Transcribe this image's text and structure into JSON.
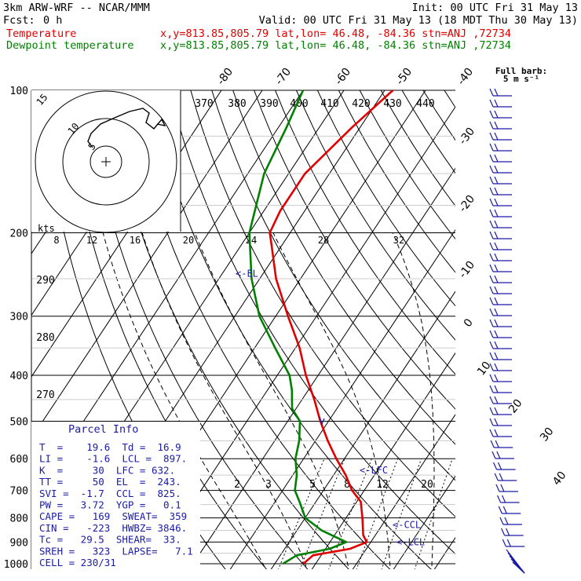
{
  "header": {
    "model": "3km ARW-WRF -- NCAR/MMM",
    "init": "Init: 00 UTC Fri 31 May 13",
    "fcst_label": "Fcst:",
    "fcst_value": "0 h",
    "valid": "Valid: 00 UTC Fri 31 May 13 (18 MDT Thu 30 May 13)",
    "series": [
      {
        "name": "Temperature",
        "info": "x,y=813.85,805.79   lat,lon= 46.48, -84.36   stn=ANJ ,72734",
        "color": "#e00000"
      },
      {
        "name": "Dewpoint temperature",
        "info": "x,y=813.85,805.79   lat,lon= 46.48, -84.36   stn=ANJ ,72734",
        "color": "#008000"
      }
    ]
  },
  "barb_legend": {
    "line1": "Full barb:",
    "line2": "5 m s⁻¹"
  },
  "chart_data": {
    "type": "line",
    "diagram": "skew-T log-p",
    "yscale": "log",
    "pressure_ticks": [
      "100",
      "200",
      "300",
      "400",
      "500",
      "600",
      "700",
      "800",
      "900",
      "1000"
    ],
    "skewed_temp_labels_top": [
      "-80",
      "-70",
      "-60",
      "-50",
      "-40"
    ],
    "skewed_temp_labels_right": [
      "-30",
      "-20",
      "-10",
      "0",
      "10",
      "20",
      "30",
      "40"
    ],
    "theta_labels": [
      "370",
      "380",
      "390",
      "400",
      "410",
      "420",
      "430",
      "440"
    ],
    "theta_labels_left": [
      "290",
      "280",
      "270"
    ],
    "mixing_ratio_labels": [
      "2",
      "3",
      "5",
      "8",
      "12",
      "20"
    ],
    "series": [
      {
        "name": "Temperature",
        "color": "#e00000",
        "points": [
          [
            1000,
            -3
          ],
          [
            960,
            -2
          ],
          [
            930,
            6
          ],
          [
            900,
            9
          ],
          [
            870,
            7
          ],
          [
            800,
            4
          ],
          [
            740,
            1
          ],
          [
            700,
            -3
          ],
          [
            650,
            -7
          ],
          [
            600,
            -12
          ],
          [
            550,
            -17
          ],
          [
            500,
            -22
          ],
          [
            450,
            -27
          ],
          [
            400,
            -33
          ],
          [
            350,
            -39
          ],
          [
            300,
            -47
          ],
          [
            250,
            -56
          ],
          [
            210,
            -63
          ],
          [
            200,
            -65
          ],
          [
            180,
            -66
          ],
          [
            150,
            -66
          ],
          [
            120,
            -62
          ],
          [
            100,
            -58
          ]
        ]
      },
      {
        "name": "Dewpoint temperature",
        "color": "#008000",
        "points": [
          [
            1000,
            -8
          ],
          [
            960,
            -6
          ],
          [
            930,
            1
          ],
          [
            900,
            4
          ],
          [
            850,
            -4
          ],
          [
            800,
            -10
          ],
          [
            740,
            -14
          ],
          [
            700,
            -17
          ],
          [
            650,
            -19
          ],
          [
            600,
            -22
          ],
          [
            550,
            -24
          ],
          [
            500,
            -27
          ],
          [
            470,
            -31
          ],
          [
            430,
            -34
          ],
          [
            400,
            -37
          ],
          [
            350,
            -45
          ],
          [
            300,
            -54
          ],
          [
            250,
            -62
          ],
          [
            200,
            -70
          ],
          [
            150,
            -76
          ],
          [
            120,
            -78
          ],
          [
            100,
            -80
          ]
        ]
      }
    ],
    "level_markers": [
      {
        "label": "<-EL",
        "pressure": 243
      },
      {
        "label": "<-LFC",
        "pressure": 632
      },
      {
        "label": "<-CCL",
        "pressure": 825
      },
      {
        "label": "<-LCL",
        "pressure": 897
      }
    ]
  },
  "hodograph": {
    "rings": [
      "5",
      "10",
      "15"
    ],
    "kts_label": "kts",
    "speed_labels": [
      "8",
      "12",
      "16",
      "20",
      "24",
      "28",
      "32"
    ]
  },
  "parcel_info": {
    "title": "Parcel Info",
    "rows": [
      "T  =    19.6  Td =  16.9",
      "LI =    -1.6  LCL =  897.",
      "K  =     30  LFC = 632.",
      "TT =     50  EL  =  243.",
      "SVI =  -1.7  CCL =  825.",
      "PW =   3.72  YGP =   0.1",
      "CAPE =   169  SWEAT=  359",
      "CIN =   -223  HWBZ= 3846.",
      "Tc =   29.5  SHEAR=  33.",
      "SREH =   323  LAPSE=   7.1",
      "CELL = 230/31"
    ]
  }
}
